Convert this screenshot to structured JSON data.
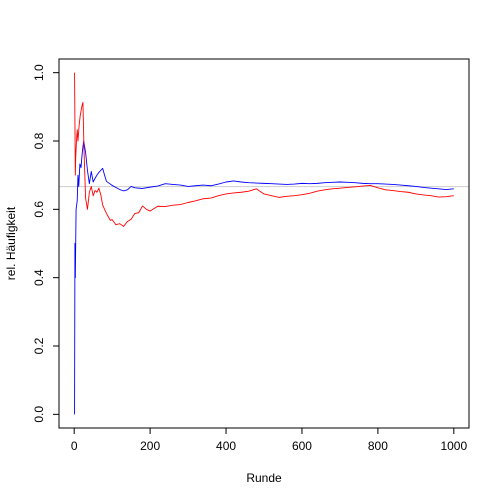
{
  "chart_data": {
    "type": "line",
    "title": "",
    "xlabel": "Runde",
    "ylabel": "rel. Häufigkeit",
    "xlim": [
      0,
      1000
    ],
    "ylim": [
      0,
      1
    ],
    "x_ticks": [
      "0",
      "200",
      "400",
      "600",
      "800",
      "1000"
    ],
    "y_ticks": [
      "0.0",
      "0.2",
      "0.4",
      "0.6",
      "0.8",
      "1.0"
    ],
    "reference_line": {
      "y": 0.6667,
      "color": "#d3d3d3"
    },
    "grid": false,
    "legend": "none",
    "series": [
      {
        "color": "#0000ff",
        "x": [
          1,
          2,
          3,
          5,
          8,
          10,
          12,
          15,
          18,
          20,
          22,
          25,
          30,
          35,
          40,
          45,
          50,
          55,
          60,
          65,
          70,
          75,
          80,
          85,
          90,
          100,
          110,
          120,
          130,
          140,
          150,
          160,
          180,
          200,
          220,
          240,
          260,
          280,
          300,
          320,
          340,
          360,
          380,
          400,
          420,
          440,
          460,
          480,
          500,
          520,
          540,
          560,
          580,
          600,
          620,
          640,
          660,
          680,
          700,
          720,
          740,
          760,
          780,
          800,
          820,
          840,
          860,
          880,
          900,
          920,
          940,
          960,
          980,
          1000
        ],
        "y": [
          0.0,
          0.5,
          0.4,
          0.6,
          0.625,
          0.7,
          0.667,
          0.733,
          0.722,
          0.75,
          0.773,
          0.8,
          0.767,
          0.714,
          0.675,
          0.711,
          0.68,
          0.691,
          0.7,
          0.708,
          0.714,
          0.72,
          0.7,
          0.682,
          0.678,
          0.67,
          0.664,
          0.658,
          0.654,
          0.657,
          0.667,
          0.663,
          0.661,
          0.665,
          0.668,
          0.675,
          0.673,
          0.671,
          0.667,
          0.669,
          0.671,
          0.669,
          0.674,
          0.68,
          0.683,
          0.68,
          0.678,
          0.677,
          0.676,
          0.675,
          0.674,
          0.673,
          0.674,
          0.676,
          0.675,
          0.676,
          0.678,
          0.679,
          0.68,
          0.679,
          0.678,
          0.676,
          0.675,
          0.675,
          0.674,
          0.673,
          0.671,
          0.669,
          0.667,
          0.664,
          0.662,
          0.66,
          0.658,
          0.66
        ]
      },
      {
        "color": "#ff0000",
        "x": [
          1,
          2,
          3,
          4,
          6,
          8,
          10,
          13,
          16,
          20,
          23,
          26,
          30,
          35,
          40,
          45,
          50,
          55,
          60,
          65,
          70,
          75,
          80,
          85,
          90,
          95,
          100,
          110,
          120,
          130,
          140,
          150,
          160,
          170,
          180,
          190,
          200,
          220,
          240,
          260,
          280,
          300,
          320,
          340,
          360,
          380,
          400,
          420,
          440,
          460,
          480,
          500,
          520,
          540,
          560,
          580,
          600,
          620,
          640,
          660,
          680,
          700,
          720,
          740,
          760,
          780,
          800,
          820,
          840,
          860,
          880,
          900,
          920,
          940,
          960,
          980,
          1000
        ],
        "y": [
          1.0,
          0.85,
          0.7,
          0.75,
          0.8,
          0.833,
          0.8,
          0.846,
          0.875,
          0.9,
          0.913,
          0.769,
          0.633,
          0.6,
          0.65,
          0.667,
          0.64,
          0.655,
          0.65,
          0.662,
          0.643,
          0.613,
          0.6,
          0.588,
          0.578,
          0.568,
          0.57,
          0.555,
          0.558,
          0.55,
          0.564,
          0.571,
          0.588,
          0.59,
          0.61,
          0.6,
          0.595,
          0.609,
          0.608,
          0.612,
          0.614,
          0.62,
          0.625,
          0.631,
          0.633,
          0.64,
          0.645,
          0.648,
          0.65,
          0.653,
          0.66,
          0.645,
          0.64,
          0.635,
          0.638,
          0.64,
          0.643,
          0.647,
          0.653,
          0.657,
          0.66,
          0.662,
          0.664,
          0.666,
          0.668,
          0.67,
          0.663,
          0.657,
          0.655,
          0.652,
          0.65,
          0.645,
          0.642,
          0.64,
          0.636,
          0.637,
          0.64
        ]
      }
    ]
  }
}
